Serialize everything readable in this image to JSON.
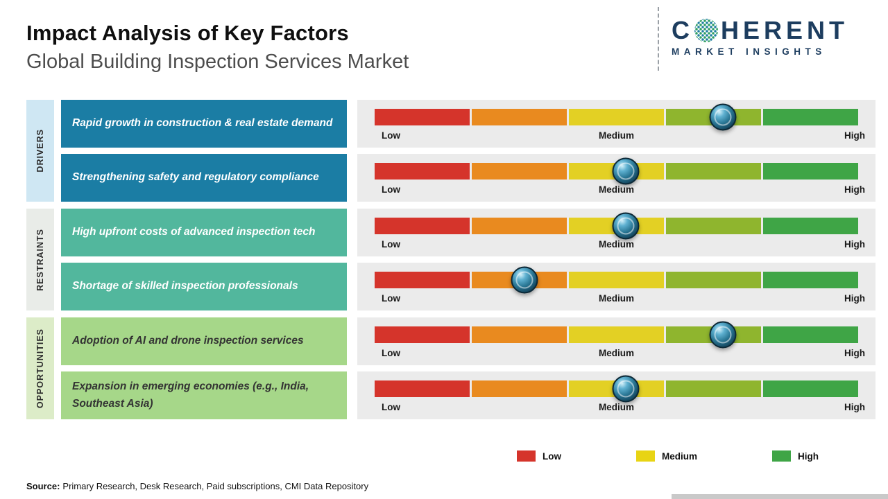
{
  "header": {
    "title": "Impact Analysis of Key Factors",
    "subtitle": "Global Building Inspection Services Market"
  },
  "logo": {
    "c": "C",
    "rest": "HERENT",
    "tagline": "MARKET INSIGHTS",
    "navy": "#1d3d5f"
  },
  "scale_labels": {
    "low": "Low",
    "medium": "Medium",
    "high": "High"
  },
  "bar": {
    "track_bg": "#ebebeb",
    "segment_colors": [
      "#d5342b",
      "#e98a1f",
      "#e3d024",
      "#8fb52e",
      "#3fa546"
    ],
    "marker_outer": "#0d2f40",
    "marker_inner": "#2a7795"
  },
  "categories": [
    {
      "label": "DRIVERS",
      "tab_color": "#cfe7f3",
      "box_color": "#1b7da4",
      "text_color": "#ffffff",
      "factors": [
        {
          "text": "Rapid growth in construction & real estate demand",
          "position_pct": 72
        },
        {
          "text": "Strengthening safety and regulatory compliance",
          "position_pct": 52
        }
      ]
    },
    {
      "label": "RESTRAINTS",
      "tab_color": "#e9ece8",
      "box_color": "#52b79d",
      "text_color": "#ffffff",
      "factors": [
        {
          "text": "High upfront costs of advanced inspection tech",
          "position_pct": 52
        },
        {
          "text": "Shortage of skilled inspection professionals",
          "position_pct": 31
        }
      ]
    },
    {
      "label": "OPPORTUNITIES",
      "tab_color": "#dcecc8",
      "box_color": "#a6d789",
      "text_color": "#333333",
      "factors": [
        {
          "text": "Adoption of AI and drone inspection services",
          "position_pct": 72
        },
        {
          "text": "Expansion in emerging economies (e.g., India, Southeast Asia)",
          "position_pct": 52
        }
      ]
    }
  ],
  "legend": [
    {
      "label": "Low",
      "color": "#d5342b"
    },
    {
      "label": "Medium",
      "color": "#e8d414"
    },
    {
      "label": "High",
      "color": "#3fa546"
    }
  ],
  "source": {
    "prefix": "Source:",
    "text": "Primary Research, Desk Research, Paid subscriptions, CMI Data Repository"
  },
  "chart_data": {
    "type": "bar",
    "title": "Impact Analysis of Key Factors",
    "subtitle": "Global Building Inspection Services Market",
    "x_scale": [
      "Low",
      "Medium",
      "High"
    ],
    "x_range_pct": [
      0,
      100
    ],
    "grid": false,
    "legend_position": "bottom-right",
    "legend": [
      "Low",
      "Medium",
      "High"
    ],
    "series": [
      {
        "category": "Drivers",
        "factor": "Rapid growth in construction & real estate demand",
        "impact_pct": 72,
        "impact_level": "Medium-High"
      },
      {
        "category": "Drivers",
        "factor": "Strengthening safety and regulatory compliance",
        "impact_pct": 52,
        "impact_level": "Medium"
      },
      {
        "category": "Restraints",
        "factor": "High upfront costs of advanced inspection tech",
        "impact_pct": 52,
        "impact_level": "Medium"
      },
      {
        "category": "Restraints",
        "factor": "Shortage of skilled inspection professionals",
        "impact_pct": 31,
        "impact_level": "Low-Medium"
      },
      {
        "category": "Opportunities",
        "factor": "Adoption of AI and drone inspection services",
        "impact_pct": 72,
        "impact_level": "Medium-High"
      },
      {
        "category": "Opportunities",
        "factor": "Expansion in emerging economies (e.g., India, Southeast Asia)",
        "impact_pct": 52,
        "impact_level": "Medium"
      }
    ]
  }
}
